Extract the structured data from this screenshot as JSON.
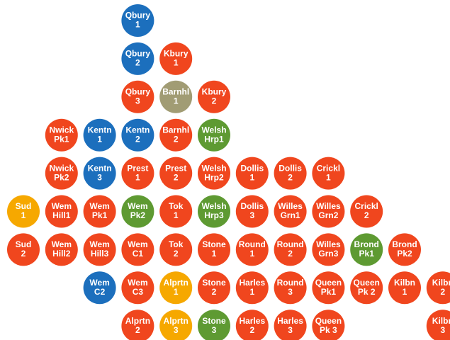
{
  "rows": [
    [
      null,
      null,
      null,
      {
        "lines": [
          "Qbury",
          "1"
        ],
        "color": "#1c6fbd"
      }
    ],
    [
      null,
      null,
      null,
      {
        "lines": [
          "Qbury",
          "2"
        ],
        "color": "#1c6fbd"
      },
      {
        "lines": [
          "Kbury",
          "1"
        ],
        "color": "#f0461e"
      }
    ],
    [
      null,
      null,
      null,
      {
        "lines": [
          "Qbury",
          "3"
        ],
        "color": "#f0461e"
      },
      {
        "lines": [
          "Barnhl",
          "1"
        ],
        "color": "#a19c74"
      },
      {
        "lines": [
          "Kbury",
          "2"
        ],
        "color": "#f0461e"
      }
    ],
    [
      null,
      {
        "lines": [
          "Nwick",
          "Pk1"
        ],
        "color": "#f0461e"
      },
      {
        "lines": [
          "Kentn",
          "1"
        ],
        "color": "#1c6fbd"
      },
      {
        "lines": [
          "Kentn",
          "2"
        ],
        "color": "#1c6fbd"
      },
      {
        "lines": [
          "Barnhl",
          "2"
        ],
        "color": "#f0461e"
      },
      {
        "lines": [
          "Welsh",
          "Hrp1"
        ],
        "color": "#5e9a32"
      }
    ],
    [
      null,
      {
        "lines": [
          "Nwick",
          "Pk2"
        ],
        "color": "#f0461e"
      },
      {
        "lines": [
          "Kentn",
          "3"
        ],
        "color": "#1c6fbd"
      },
      {
        "lines": [
          "Prest",
          "1"
        ],
        "color": "#f0461e"
      },
      {
        "lines": [
          "Prest",
          "2"
        ],
        "color": "#f0461e"
      },
      {
        "lines": [
          "Welsh",
          "Hrp2"
        ],
        "color": "#f0461e"
      },
      {
        "lines": [
          "Dollis",
          "1"
        ],
        "color": "#f0461e"
      },
      {
        "lines": [
          "Dollis",
          "2"
        ],
        "color": "#f0461e"
      },
      {
        "lines": [
          "Crickl",
          "1"
        ],
        "color": "#f0461e"
      }
    ],
    [
      {
        "lines": [
          "Sud",
          "1"
        ],
        "color": "#f6a800"
      },
      {
        "lines": [
          "Wem",
          "Hill1"
        ],
        "color": "#f0461e"
      },
      {
        "lines": [
          "Wem",
          "Pk1"
        ],
        "color": "#f0461e"
      },
      {
        "lines": [
          "Wem",
          "Pk2"
        ],
        "color": "#5e9a32"
      },
      {
        "lines": [
          "Tok",
          "1"
        ],
        "color": "#f0461e"
      },
      {
        "lines": [
          "Welsh",
          "Hrp3"
        ],
        "color": "#5e9a32"
      },
      {
        "lines": [
          "Dollis",
          "3"
        ],
        "color": "#f0461e"
      },
      {
        "lines": [
          "Willes",
          "Grn1"
        ],
        "color": "#f0461e"
      },
      {
        "lines": [
          "Willes",
          "Grn2"
        ],
        "color": "#f0461e"
      },
      {
        "lines": [
          "Crickl",
          "2"
        ],
        "color": "#f0461e"
      }
    ],
    [
      {
        "lines": [
          "Sud",
          "2"
        ],
        "color": "#f0461e"
      },
      {
        "lines": [
          "Wem",
          "Hill2"
        ],
        "color": "#f0461e"
      },
      {
        "lines": [
          "Wem",
          "Hill3"
        ],
        "color": "#f0461e"
      },
      {
        "lines": [
          "Wem",
          "C1"
        ],
        "color": "#f0461e"
      },
      {
        "lines": [
          "Tok",
          "2"
        ],
        "color": "#f0461e"
      },
      {
        "lines": [
          "Stone",
          "1"
        ],
        "color": "#f0461e"
      },
      {
        "lines": [
          "Round",
          "1"
        ],
        "color": "#f0461e"
      },
      {
        "lines": [
          "Round",
          "2"
        ],
        "color": "#f0461e"
      },
      {
        "lines": [
          "Willes",
          "Grn3"
        ],
        "color": "#f0461e"
      },
      {
        "lines": [
          "Brond",
          "Pk1"
        ],
        "color": "#5e9a32"
      },
      {
        "lines": [
          "Brond",
          "Pk2"
        ],
        "color": "#f0461e"
      }
    ],
    [
      null,
      null,
      {
        "lines": [
          "Wem",
          "C2"
        ],
        "color": "#1c6fbd"
      },
      {
        "lines": [
          "Wem",
          "C3"
        ],
        "color": "#f0461e"
      },
      {
        "lines": [
          "Alprtn",
          "1"
        ],
        "color": "#f6a800"
      },
      {
        "lines": [
          "Stone",
          "2"
        ],
        "color": "#f0461e"
      },
      {
        "lines": [
          "Harles",
          "1"
        ],
        "color": "#f0461e"
      },
      {
        "lines": [
          "Round",
          "3"
        ],
        "color": "#f0461e"
      },
      {
        "lines": [
          "Queen",
          "Pk1"
        ],
        "color": "#f0461e"
      },
      {
        "lines": [
          "Queen",
          "Pk 2"
        ],
        "color": "#f0461e"
      },
      {
        "lines": [
          "Kilbn",
          "1"
        ],
        "color": "#f0461e"
      },
      {
        "lines": [
          "Kilbn",
          "2"
        ],
        "color": "#f0461e"
      }
    ],
    [
      null,
      null,
      null,
      {
        "lines": [
          "Alprtn",
          "2"
        ],
        "color": "#f0461e"
      },
      {
        "lines": [
          "Alprtn",
          "3"
        ],
        "color": "#f6a800"
      },
      {
        "lines": [
          "Stone",
          "3"
        ],
        "color": "#5e9a32"
      },
      {
        "lines": [
          "Harles",
          "2"
        ],
        "color": "#f0461e"
      },
      {
        "lines": [
          "Harles",
          "3"
        ],
        "color": "#f0461e"
      },
      {
        "lines": [
          "Queen",
          "Pk 3"
        ],
        "color": "#f0461e"
      },
      null,
      null,
      {
        "lines": [
          "Kilbn",
          "3"
        ],
        "color": "#f0461e"
      }
    ]
  ]
}
